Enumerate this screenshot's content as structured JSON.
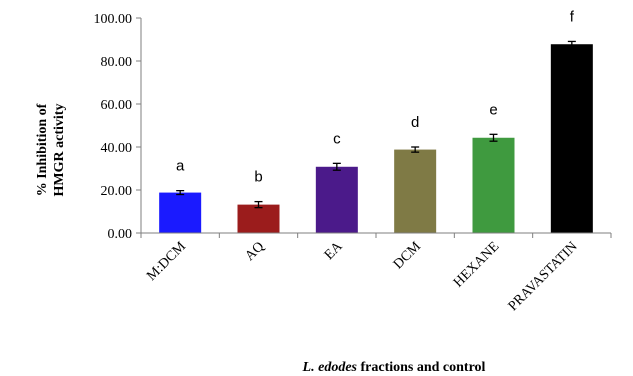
{
  "chart_data": {
    "type": "bar",
    "categories": [
      "M:DCM",
      "AQ",
      "EA",
      "DCM",
      "HEXANE",
      "PRAVASTATIN"
    ],
    "values": [
      18.8,
      13.2,
      30.8,
      38.8,
      44.3,
      87.8
    ],
    "errors": [
      0.9,
      1.4,
      1.6,
      1.2,
      1.6,
      1.3
    ],
    "significance_labels": [
      "a",
      "b",
      "c",
      "d",
      "e",
      "f"
    ],
    "colors": [
      "#1a1aff",
      "#9b1c1c",
      "#4b1a8a",
      "#7f7a45",
      "#3f9a3f",
      "#000000"
    ],
    "ylabel_line1": "% Inhibition of",
    "ylabel_line2": "HMGR activity",
    "xlabel_italic": "L. edodes",
    "xlabel_rest": " fractions and control",
    "ylim": [
      0,
      100
    ],
    "yticks": [
      "0.00",
      "20.00",
      "40.00",
      "60.00",
      "80.00",
      "100.00"
    ],
    "grid": false,
    "legend": "none"
  }
}
